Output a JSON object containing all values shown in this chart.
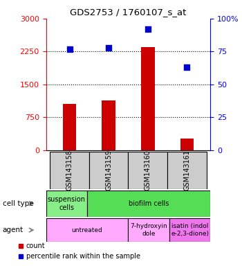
{
  "title": "GDS2753 / 1760107_s_at",
  "samples": [
    "GSM143158",
    "GSM143159",
    "GSM143160",
    "GSM143161"
  ],
  "counts": [
    1050,
    1130,
    2350,
    270
  ],
  "percentile_ranks": [
    77,
    78,
    92,
    63
  ],
  "left_yticks": [
    0,
    750,
    1500,
    2250,
    3000
  ],
  "right_yticks": [
    0,
    25,
    50,
    75,
    100
  ],
  "left_ylim": [
    0,
    3000
  ],
  "right_ylim": [
    0,
    100
  ],
  "bar_color": "#cc0000",
  "dot_color": "#0000cc",
  "cell_type_data": [
    {
      "label": "suspension\ncells",
      "start": 0,
      "end": 1,
      "color": "#88ee88"
    },
    {
      "label": "biofilm cells",
      "start": 1,
      "end": 4,
      "color": "#55dd55"
    }
  ],
  "agent_data": [
    {
      "label": "untreated",
      "start": 0,
      "end": 2,
      "color": "#ffaaff"
    },
    {
      "label": "7-hydroxyin\ndole",
      "start": 2,
      "end": 3,
      "color": "#ffaaff"
    },
    {
      "label": "isatin (indol\ne-2,3-dione)",
      "start": 3,
      "end": 4,
      "color": "#ee77ee"
    }
  ],
  "row_label_cell_type": "cell type",
  "row_label_agent": "agent",
  "legend_count": "count",
  "legend_percentile": "percentile rank within the sample"
}
